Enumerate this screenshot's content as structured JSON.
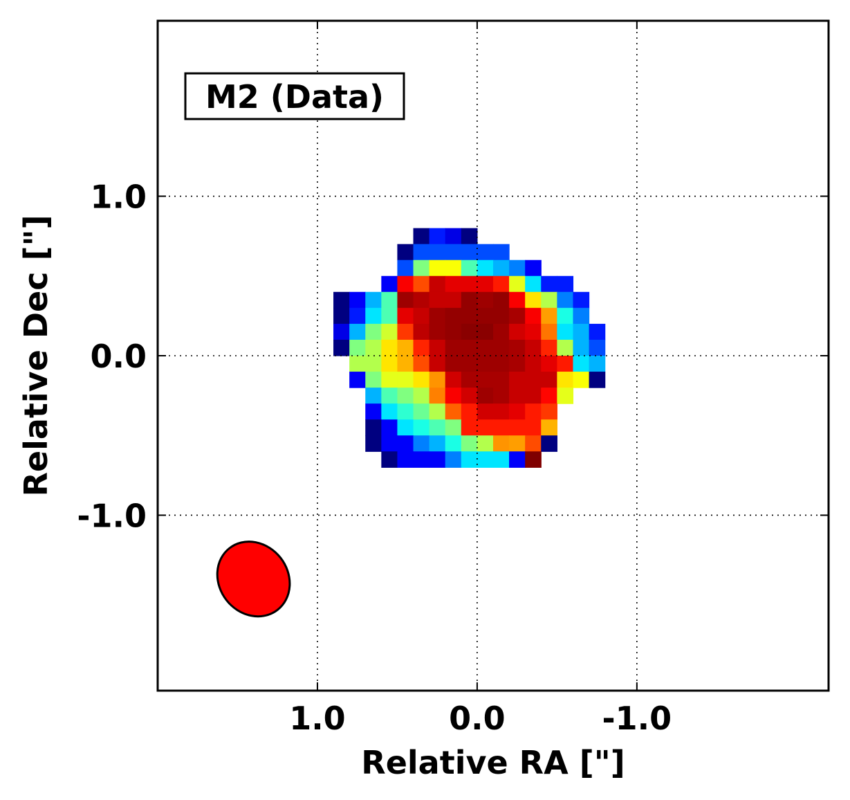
{
  "chart_data": {
    "type": "heatmap",
    "title": "",
    "annotation": "M2 (Data)",
    "xlabel": "Relative RA [\"]",
    "ylabel": "Relative Dec [\"]",
    "xlim": [
      2.0,
      -2.2
    ],
    "ylim": [
      -2.1,
      2.1
    ],
    "xticks": [
      1.0,
      0.0,
      -1.0
    ],
    "xtick_labels": [
      "1.0",
      "0.0",
      "-1.0"
    ],
    "yticks": [
      1.0,
      0.0,
      -1.0
    ],
    "ytick_labels": [
      "1.0",
      "0.0",
      "-1.0"
    ],
    "grid": true,
    "grid_style": "dotted",
    "pixel_size": 0.1,
    "grid_origin": {
      "ra": 0.9,
      "dec": 0.8
    },
    "colormap": "jet",
    "value_range": [
      0,
      1
    ],
    "values": [
      [
        null,
        null,
        null,
        null,
        null,
        0.0,
        0.15,
        0.1,
        0.0,
        null,
        null,
        null,
        null,
        null,
        null,
        null,
        null
      ],
      [
        null,
        null,
        null,
        null,
        0.0,
        0.2,
        0.2,
        0.2,
        0.2,
        0.2,
        0.2,
        null,
        null,
        null,
        null,
        null,
        null
      ],
      [
        null,
        null,
        null,
        null,
        0.2,
        0.5,
        0.62,
        0.62,
        0.45,
        0.35,
        0.3,
        0.25,
        0.12,
        null,
        null,
        null,
        null
      ],
      [
        null,
        null,
        null,
        0.12,
        0.88,
        0.8,
        0.93,
        0.9,
        0.9,
        0.9,
        0.85,
        0.6,
        0.35,
        0.15,
        0.15,
        null,
        null
      ],
      [
        0.0,
        0.12,
        0.3,
        0.45,
        0.97,
        0.95,
        0.93,
        0.93,
        0.98,
        0.97,
        0.98,
        0.88,
        0.65,
        0.55,
        0.25,
        0.15,
        null
      ],
      [
        0.0,
        0.15,
        0.35,
        0.45,
        0.9,
        0.93,
        0.97,
        0.98,
        0.98,
        0.98,
        0.98,
        0.96,
        0.88,
        0.72,
        0.4,
        0.25,
        null
      ],
      [
        0.1,
        0.3,
        0.5,
        0.58,
        0.82,
        0.94,
        0.97,
        0.98,
        0.99,
        0.99,
        0.97,
        0.92,
        0.9,
        0.76,
        0.35,
        0.3,
        0.15
      ],
      [
        0.0,
        0.5,
        0.55,
        0.65,
        0.7,
        0.84,
        0.93,
        0.97,
        0.97,
        0.97,
        0.97,
        0.96,
        0.93,
        0.84,
        0.55,
        0.3,
        0.2
      ],
      [
        null,
        0.55,
        0.55,
        0.65,
        0.7,
        0.8,
        0.93,
        0.97,
        0.97,
        0.97,
        0.97,
        0.96,
        0.93,
        0.9,
        0.85,
        0.35,
        0.3
      ],
      [
        null,
        0.12,
        0.5,
        0.6,
        0.6,
        0.65,
        0.73,
        0.92,
        0.96,
        0.96,
        0.96,
        0.93,
        0.93,
        0.93,
        0.65,
        0.62,
        0.0
      ],
      [
        null,
        null,
        0.3,
        0.45,
        0.5,
        0.55,
        0.75,
        0.88,
        0.92,
        0.97,
        0.96,
        0.93,
        0.93,
        0.87,
        0.6,
        null,
        null
      ],
      [
        null,
        null,
        0.12,
        0.35,
        0.42,
        0.48,
        0.55,
        0.78,
        0.85,
        0.92,
        0.92,
        0.9,
        0.85,
        0.82,
        null,
        null,
        null
      ],
      [
        null,
        null,
        0.0,
        0.12,
        0.35,
        0.4,
        0.45,
        0.5,
        0.85,
        0.85,
        0.85,
        0.85,
        0.85,
        0.7,
        null,
        null,
        null
      ],
      [
        null,
        null,
        0.0,
        0.12,
        0.12,
        0.25,
        0.3,
        0.4,
        0.5,
        0.55,
        0.73,
        0.72,
        0.8,
        0.0,
        null,
        null,
        null
      ],
      [
        null,
        null,
        null,
        0.0,
        0.12,
        0.12,
        0.12,
        0.25,
        0.35,
        0.35,
        0.35,
        0.12,
        1.0,
        null,
        null,
        null,
        null
      ]
    ],
    "beam": {
      "center_ra": 1.4,
      "center_dec": -1.4,
      "major_ra_extent": 0.43,
      "minor_dec_extent": 0.45,
      "position_angle_deg": 38,
      "fill": "#ff0000",
      "edge": "#000000"
    }
  }
}
